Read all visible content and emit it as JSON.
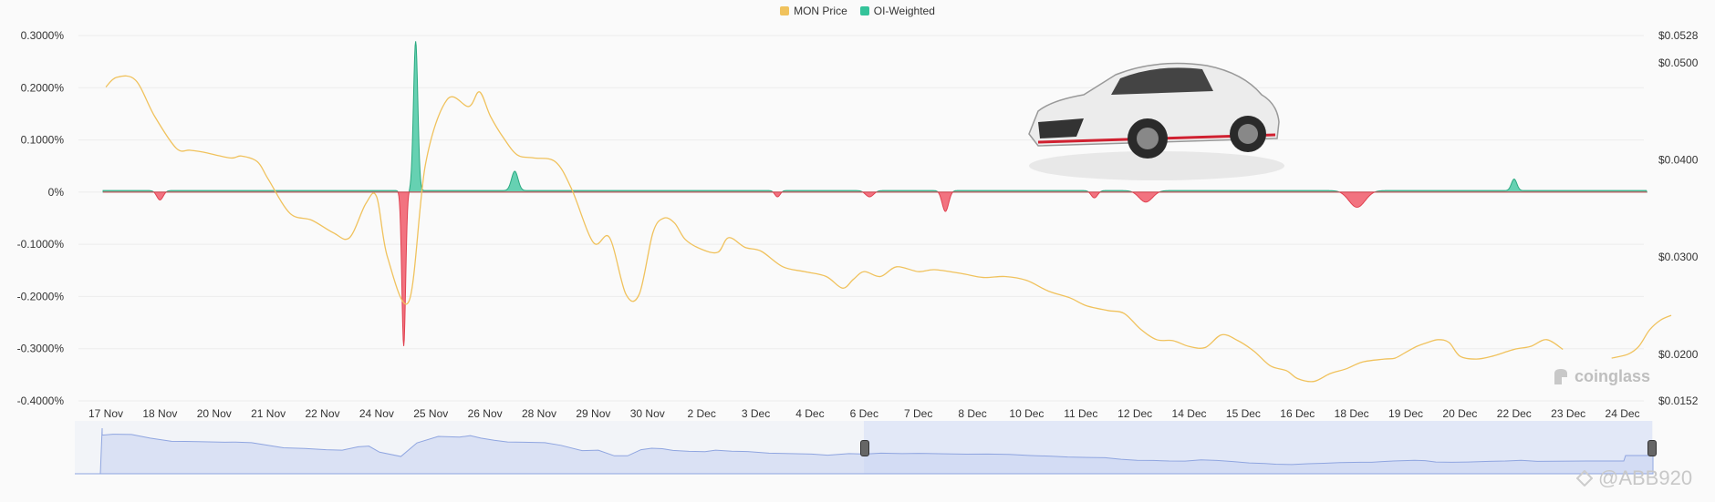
{
  "legend": [
    {
      "label": "MON Price",
      "color": "#f0c25d"
    },
    {
      "label": "OI-Weighted",
      "color": "#34c39a"
    }
  ],
  "watermark": {
    "brand": "coinglass",
    "handle": "@ABB920"
  },
  "chart_data": {
    "type": "line",
    "title": "",
    "legend_position": "top-center",
    "grid": true,
    "categories": [
      "17 Nov",
      "18 Nov",
      "20 Nov",
      "21 Nov",
      "22 Nov",
      "24 Nov",
      "25 Nov",
      "26 Nov",
      "28 Nov",
      "29 Nov",
      "30 Nov",
      "2 Dec",
      "3 Dec",
      "4 Dec",
      "6 Dec",
      "7 Dec",
      "8 Dec",
      "10 Dec",
      "11 Dec",
      "12 Dec",
      "14 Dec",
      "15 Dec",
      "16 Dec",
      "18 Dec",
      "19 Dec",
      "20 Dec",
      "22 Dec",
      "23 Dec",
      "24 Dec"
    ],
    "left_axis": {
      "ticks": [
        "0.3000%",
        "0.2000%",
        "0.1000%",
        "0%",
        "-0.1000%",
        "-0.2000%",
        "-0.3000%",
        "-0.4000%"
      ],
      "range": [
        -0.4,
        0.3
      ]
    },
    "right_axis": {
      "ticks": [
        "$0.0528",
        "$0.0500",
        "$0.0400",
        "$0.0300",
        "$0.0200",
        "$0.0152"
      ],
      "range": [
        0.0152,
        0.0528
      ]
    },
    "series": [
      {
        "name": "MON Price",
        "color": "#f0c25d",
        "axis": "right",
        "points": [
          [
            0,
            0.0475
          ],
          [
            0.2,
            0.0485
          ],
          [
            0.55,
            0.0482
          ],
          [
            0.9,
            0.0445
          ],
          [
            1.3,
            0.0412
          ],
          [
            1.55,
            0.041
          ],
          [
            1.8,
            0.0408
          ],
          [
            2.3,
            0.0402
          ],
          [
            2.5,
            0.0404
          ],
          [
            2.8,
            0.0398
          ],
          [
            3.0,
            0.038
          ],
          [
            3.4,
            0.0345
          ],
          [
            3.8,
            0.0338
          ],
          [
            4.2,
            0.0325
          ],
          [
            4.5,
            0.032
          ],
          [
            4.8,
            0.0355
          ],
          [
            5.0,
            0.0362
          ],
          [
            5.2,
            0.03
          ],
          [
            5.6,
            0.0255
          ],
          [
            5.9,
            0.0395
          ],
          [
            6.3,
            0.0462
          ],
          [
            6.7,
            0.0455
          ],
          [
            6.9,
            0.047
          ],
          [
            7.1,
            0.0445
          ],
          [
            7.35,
            0.0422
          ],
          [
            7.6,
            0.0405
          ],
          [
            7.9,
            0.0402
          ],
          [
            8.3,
            0.0398
          ],
          [
            8.6,
            0.037
          ],
          [
            9.0,
            0.0315
          ],
          [
            9.3,
            0.032
          ],
          [
            9.6,
            0.0262
          ],
          [
            9.85,
            0.0262
          ],
          [
            10.1,
            0.0325
          ],
          [
            10.3,
            0.034
          ],
          [
            10.5,
            0.0335
          ],
          [
            10.7,
            0.0318
          ],
          [
            11.0,
            0.0308
          ],
          [
            11.3,
            0.0305
          ],
          [
            11.5,
            0.032
          ],
          [
            11.8,
            0.031
          ],
          [
            12.1,
            0.0306
          ],
          [
            12.5,
            0.029
          ],
          [
            12.9,
            0.0285
          ],
          [
            13.3,
            0.028
          ],
          [
            13.6,
            0.0268
          ],
          [
            13.8,
            0.0277
          ],
          [
            14.0,
            0.0285
          ],
          [
            14.3,
            0.028
          ],
          [
            14.6,
            0.029
          ],
          [
            15.0,
            0.0285
          ],
          [
            15.3,
            0.0287
          ],
          [
            15.8,
            0.0283
          ],
          [
            16.2,
            0.0279
          ],
          [
            16.6,
            0.028
          ],
          [
            17.0,
            0.0276
          ],
          [
            17.4,
            0.0265
          ],
          [
            17.8,
            0.0258
          ],
          [
            18.1,
            0.025
          ],
          [
            18.5,
            0.0245
          ],
          [
            18.8,
            0.0242
          ],
          [
            19.1,
            0.0226
          ],
          [
            19.4,
            0.0215
          ],
          [
            19.7,
            0.0214
          ],
          [
            20.0,
            0.0208
          ],
          [
            20.3,
            0.0207
          ],
          [
            20.6,
            0.022
          ],
          [
            20.9,
            0.0214
          ],
          [
            21.2,
            0.0203
          ],
          [
            21.5,
            0.0188
          ],
          [
            21.8,
            0.0183
          ],
          [
            22.0,
            0.0175
          ],
          [
            22.3,
            0.0172
          ],
          [
            22.6,
            0.018
          ],
          [
            22.9,
            0.0185
          ],
          [
            23.2,
            0.0192
          ],
          [
            23.6,
            0.0195
          ],
          [
            23.8,
            0.0196
          ],
          [
            24.0,
            0.0202
          ],
          [
            24.2,
            0.0208
          ],
          [
            24.4,
            0.0212
          ],
          [
            24.6,
            0.0215
          ],
          [
            24.8,
            0.0212
          ],
          [
            25.0,
            0.0198
          ],
          [
            25.3,
            0.0195
          ],
          [
            25.6,
            0.0198
          ],
          [
            26.0,
            0.0205
          ],
          [
            26.3,
            0.0208
          ],
          [
            26.6,
            0.0215
          ],
          [
            26.9,
            0.0205
          ]
        ],
        "segment2": [
          [
            27.8,
            0.0196
          ],
          [
            28.1,
            0.02
          ],
          [
            28.3,
            0.0208
          ],
          [
            28.5,
            0.0225
          ],
          [
            28.7,
            0.0235
          ],
          [
            28.9,
            0.024
          ]
        ]
      },
      {
        "name": "OI-Weighted",
        "axis": "left",
        "positive_color": "#34c39a",
        "negative_color": "#f05a6a",
        "baseline": 0.003,
        "spikes": [
          {
            "x": 1.0,
            "v": -0.018,
            "w": 0.12
          },
          {
            "x": 5.5,
            "v": -0.298,
            "w": 0.07
          },
          {
            "x": 5.72,
            "v": 0.286,
            "w": 0.08
          },
          {
            "x": 7.55,
            "v": 0.037,
            "w": 0.12
          },
          {
            "x": 12.4,
            "v": -0.012,
            "w": 0.1
          },
          {
            "x": 14.1,
            "v": -0.012,
            "w": 0.15
          },
          {
            "x": 15.5,
            "v": -0.04,
            "w": 0.12
          },
          {
            "x": 18.25,
            "v": -0.014,
            "w": 0.12
          },
          {
            "x": 19.2,
            "v": -0.022,
            "w": 0.25
          },
          {
            "x": 23.1,
            "v": -0.032,
            "w": 0.3
          },
          {
            "x": 26.0,
            "v": 0.022,
            "w": 0.1
          }
        ]
      }
    ]
  }
}
